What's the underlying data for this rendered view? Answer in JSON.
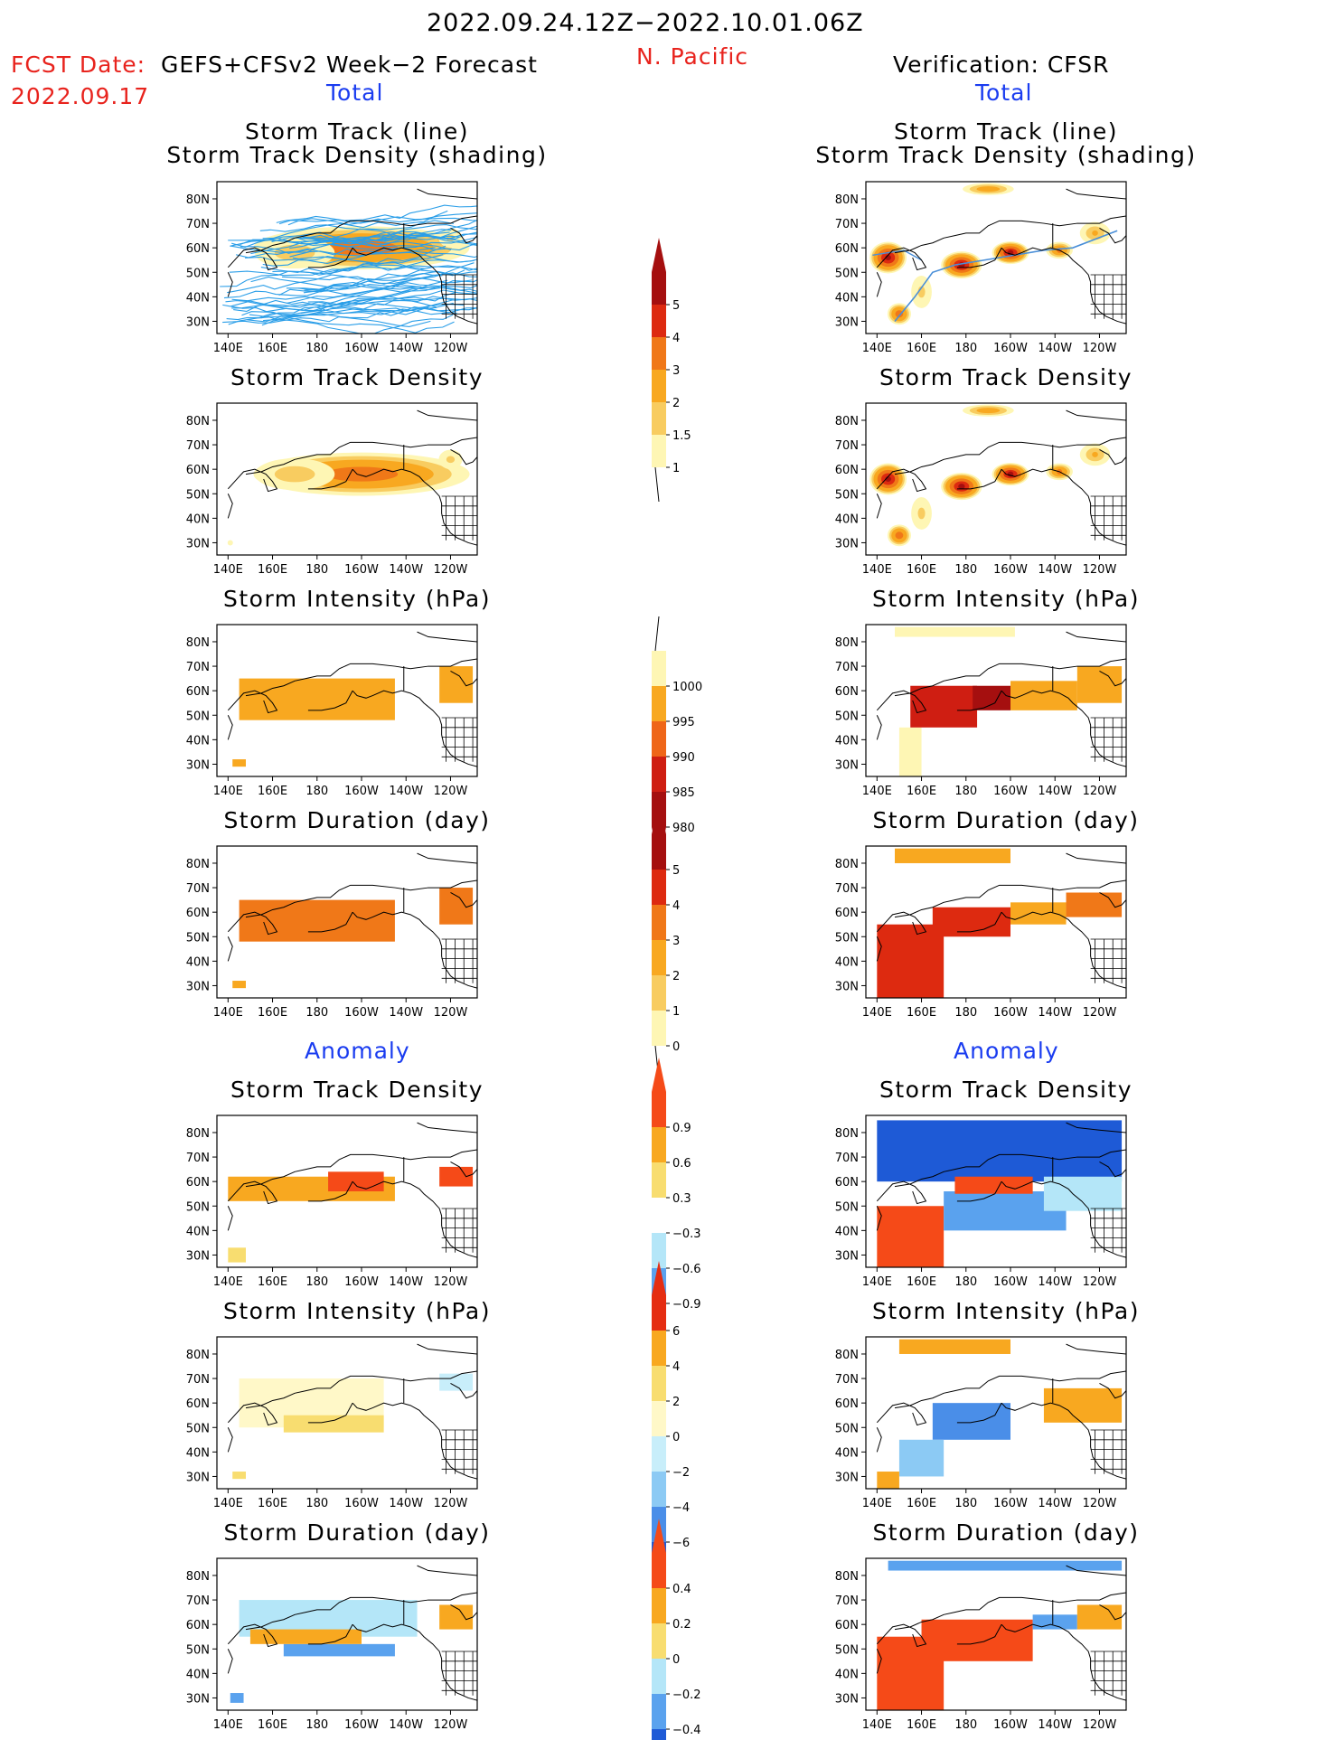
{
  "header": {
    "period": "2022.09.24.12Z−2022.10.01.06Z",
    "region": "N. Pacific",
    "fcst_date_label": "FCST Date:",
    "fcst_model": "GEFS+CFSv2 Week−2 Forecast",
    "fcst_date": "2022.09.17",
    "verification": "Verification: CFSR",
    "left_total": "Total",
    "right_total": "Total",
    "left_anomaly": "Anomaly",
    "right_anomaly": "Anomaly"
  },
  "panel_titles": {
    "track_line": "Storm Track (line)",
    "track_density_shading": "Storm Track Density (shading)",
    "track_density": "Storm Track Density",
    "intensity": "Storm Intensity (hPa)",
    "duration": "Storm Duration (day)"
  },
  "axes": {
    "lat_labels": [
      "80N",
      "70N",
      "60N",
      "50N",
      "40N",
      "30N"
    ],
    "lon_labels": [
      "140E",
      "160E",
      "180",
      "160W",
      "140W",
      "120W"
    ]
  },
  "colorbars": [
    {
      "id": "density",
      "labels": [
        "5",
        "4",
        "3",
        "2",
        "1.5",
        "1"
      ],
      "colors": [
        "#a50f0f",
        "#dd2a10",
        "#f07818",
        "#f8a820",
        "#f8cc60",
        "#fef6b4"
      ]
    },
    {
      "id": "intensity",
      "labels": [
        "1000",
        "995",
        "990",
        "985",
        "980"
      ],
      "colors": [
        "#fef6b4",
        "#f8a820",
        "#ef6618",
        "#cf1e12",
        "#a50f0f"
      ]
    },
    {
      "id": "duration",
      "labels": [
        "5",
        "4",
        "3",
        "2",
        "1",
        "0"
      ],
      "colors": [
        "#a50f0f",
        "#dd2a10",
        "#f07818",
        "#f8a820",
        "#f8cc60",
        "#fef6b4"
      ]
    },
    {
      "id": "anom-density",
      "labels": [
        "0.9",
        "0.6",
        "0.3",
        "−0.3",
        "−0.6",
        "−0.9"
      ],
      "colors": [
        "#f54a18",
        "#f8a820",
        "#f8dd70",
        "#ffffff",
        "#b4e6f8",
        "#5aa2ee",
        "#1e5ad6"
      ]
    },
    {
      "id": "anom-intensity",
      "labels": [
        "6",
        "4",
        "2",
        "0",
        "−2",
        "−4",
        "−6"
      ],
      "colors": [
        "#e52d12",
        "#f8a820",
        "#f8dd70",
        "#fff8c8",
        "#c8eefa",
        "#8ccaf4",
        "#4a8ee8",
        "#1e5ad6"
      ]
    },
    {
      "id": "anom-duration",
      "labels": [
        "0.4",
        "0.2",
        "0",
        "−0.2",
        "−0.4"
      ],
      "colors": [
        "#f54a18",
        "#f8a820",
        "#f8dd70",
        "#b4e6f8",
        "#5aa2ee",
        "#1e5ad6"
      ]
    }
  ],
  "chart_data": [
    {
      "type": "heatmap",
      "title": "Storm Track (line) / Storm Track Density (shading)",
      "source": "GEFS+CFSv2",
      "colorbar": "density",
      "overlay": "many storm tracks",
      "blobs": [
        [
          200,
          60,
          55,
          10,
          3.5
        ],
        [
          170,
          58,
          25,
          9,
          1.8
        ],
        [
          240,
          64,
          8,
          6,
          1.6
        ]
      ]
    },
    {
      "type": "heatmap",
      "title": "Storm Track (line) / Storm Track Density (shading)",
      "source": "CFSR",
      "colorbar": "density",
      "overlay": "mean track",
      "blobs": [
        [
          145,
          56,
          9,
          7,
          5
        ],
        [
          178,
          53,
          10,
          6,
          5
        ],
        [
          200,
          58,
          9,
          5,
          5
        ],
        [
          222,
          59,
          7,
          4,
          3
        ],
        [
          150,
          33,
          6,
          5,
          3.5
        ],
        [
          160,
          42,
          7,
          10,
          1.6
        ],
        [
          190,
          84,
          14,
          3,
          2.5
        ],
        [
          238,
          66,
          9,
          6,
          2
        ]
      ]
    },
    {
      "type": "heatmap",
      "title": "Storm Track Density",
      "source": "GEFS+CFSv2",
      "colorbar": "density",
      "blobs": [
        [
          200,
          58,
          55,
          10,
          3.5
        ],
        [
          170,
          58,
          25,
          9,
          1.8
        ],
        [
          240,
          64,
          8,
          6,
          1.6
        ],
        [
          141,
          30,
          2,
          2,
          1.1
        ]
      ]
    },
    {
      "type": "heatmap",
      "title": "Storm Track Density",
      "source": "CFSR",
      "colorbar": "density",
      "blobs": [
        [
          145,
          56,
          9,
          7,
          5
        ],
        [
          178,
          53,
          10,
          6,
          5
        ],
        [
          200,
          58,
          9,
          5,
          5
        ],
        [
          222,
          59,
          7,
          4,
          3
        ],
        [
          150,
          33,
          6,
          5,
          3.5
        ],
        [
          160,
          42,
          7,
          10,
          1.6
        ],
        [
          190,
          84,
          14,
          3,
          2.5
        ],
        [
          238,
          66,
          9,
          6,
          2
        ]
      ]
    },
    {
      "type": "heatmap",
      "title": "Storm Intensity (hPa)",
      "source": "GEFS+CFSv2",
      "colorbar": "intensity",
      "units": "hPa",
      "regions": [
        [
          145,
          215,
          48,
          65,
          993
        ],
        [
          142,
          148,
          29,
          32,
          993
        ],
        [
          235,
          250,
          55,
          70,
          997
        ]
      ]
    },
    {
      "type": "heatmap",
      "title": "Storm Intensity (hPa)",
      "source": "CFSR",
      "colorbar": "intensity",
      "units": "hPa",
      "regions": [
        [
          148,
          202,
          82,
          86,
          1000
        ],
        [
          150,
          160,
          25,
          45,
          1000
        ],
        [
          155,
          185,
          45,
          62,
          985
        ],
        [
          183,
          200,
          52,
          62,
          982
        ],
        [
          200,
          230,
          52,
          64,
          995
        ],
        [
          230,
          250,
          55,
          70,
          997
        ]
      ]
    },
    {
      "type": "heatmap",
      "title": "Storm Duration (day)",
      "source": "GEFS+CFSv2",
      "colorbar": "duration",
      "units": "day",
      "regions": [
        [
          145,
          215,
          48,
          65,
          3.5
        ],
        [
          142,
          148,
          29,
          32,
          2.5
        ],
        [
          235,
          250,
          55,
          70,
          3
        ]
      ]
    },
    {
      "type": "heatmap",
      "title": "Storm Duration (day)",
      "source": "CFSR",
      "colorbar": "duration",
      "units": "day",
      "regions": [
        [
          148,
          200,
          80,
          86,
          2.5
        ],
        [
          140,
          170,
          25,
          55,
          4.5
        ],
        [
          165,
          200,
          50,
          62,
          4.5
        ],
        [
          200,
          225,
          55,
          64,
          2
        ],
        [
          225,
          250,
          58,
          68,
          3.5
        ]
      ]
    },
    {
      "type": "heatmap",
      "title": "Storm Track Density",
      "source": "GEFS+CFSv2",
      "colorbar": "anom-density",
      "section": "Anomaly",
      "regions": [
        [
          145,
          245,
          68,
          85,
          -0.3
        ],
        [
          148,
          215,
          40,
          50,
          -0.3
        ],
        [
          140,
          215,
          52,
          62,
          0.7
        ],
        [
          185,
          210,
          56,
          64,
          1.0
        ],
        [
          235,
          250,
          58,
          66,
          0.9
        ],
        [
          140,
          148,
          27,
          33,
          0.3
        ]
      ]
    },
    {
      "type": "heatmap",
      "title": "Storm Track Density",
      "source": "CFSR",
      "colorbar": "anom-density",
      "section": "Anomaly",
      "regions": [
        [
          140,
          250,
          60,
          85,
          -0.95
        ],
        [
          140,
          170,
          25,
          50,
          0.9
        ],
        [
          170,
          225,
          40,
          56,
          -0.9
        ],
        [
          175,
          210,
          55,
          62,
          0.9
        ],
        [
          215,
          250,
          48,
          62,
          -0.6
        ]
      ]
    },
    {
      "type": "heatmap",
      "title": "Storm Intensity (hPa)",
      "source": "GEFS+CFSv2",
      "colorbar": "anom-intensity",
      "section": "Anomaly",
      "units": "hPa",
      "regions": [
        [
          145,
          210,
          50,
          70,
          1.5
        ],
        [
          165,
          210,
          48,
          55,
          2.5
        ],
        [
          142,
          148,
          29,
          32,
          3
        ],
        [
          235,
          250,
          65,
          72,
          -1
        ]
      ]
    },
    {
      "type": "heatmap",
      "title": "Storm Intensity (hPa)",
      "source": "CFSR",
      "colorbar": "anom-intensity",
      "section": "Anomaly",
      "units": "hPa",
      "regions": [
        [
          150,
          200,
          80,
          86,
          4
        ],
        [
          165,
          200,
          45,
          60,
          -5
        ],
        [
          150,
          170,
          30,
          45,
          -2.5
        ],
        [
          140,
          150,
          25,
          32,
          5
        ],
        [
          215,
          250,
          52,
          66,
          5.5
        ]
      ]
    },
    {
      "type": "heatmap",
      "title": "Storm Duration (day)",
      "source": "GEFS+CFSv2",
      "colorbar": "anom-duration",
      "section": "Anomaly",
      "units": "day",
      "regions": [
        [
          145,
          225,
          55,
          70,
          -0.15
        ],
        [
          165,
          215,
          47,
          52,
          -0.3
        ],
        [
          150,
          200,
          52,
          58,
          0.3
        ],
        [
          235,
          250,
          58,
          68,
          0.3
        ],
        [
          141,
          147,
          28,
          32,
          -0.4
        ]
      ]
    },
    {
      "type": "heatmap",
      "title": "Storm Duration (day)",
      "source": "CFSR",
      "colorbar": "anom-duration",
      "section": "Anomaly",
      "units": "day",
      "regions": [
        [
          145,
          250,
          82,
          86,
          -0.4
        ],
        [
          140,
          170,
          25,
          55,
          0.4
        ],
        [
          160,
          210,
          45,
          62,
          0.4
        ],
        [
          210,
          230,
          58,
          64,
          -0.35
        ],
        [
          230,
          250,
          58,
          68,
          0.3
        ]
      ]
    }
  ]
}
